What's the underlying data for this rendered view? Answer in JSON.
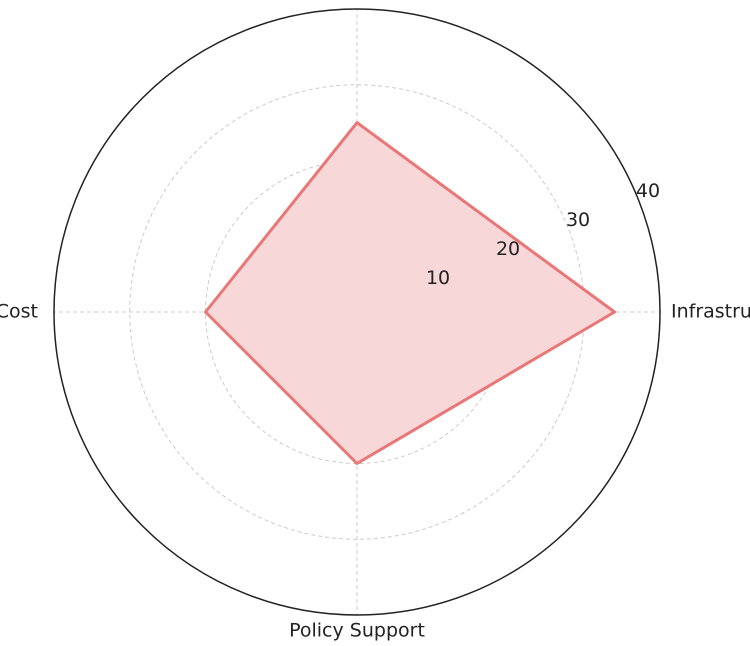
{
  "chart_data": {
    "type": "radar",
    "categories": [
      "Infrastructure",
      null,
      "Cost",
      "Policy Support"
    ],
    "series": [
      {
        "name": null,
        "color": "#e97777",
        "fill": "#f8d7d9",
        "values": [
          34,
          25,
          20,
          20
        ]
      }
    ],
    "ylim": [
      0,
      40
    ],
    "yticks": [
      10,
      20,
      30,
      40
    ],
    "grid": true
  }
}
